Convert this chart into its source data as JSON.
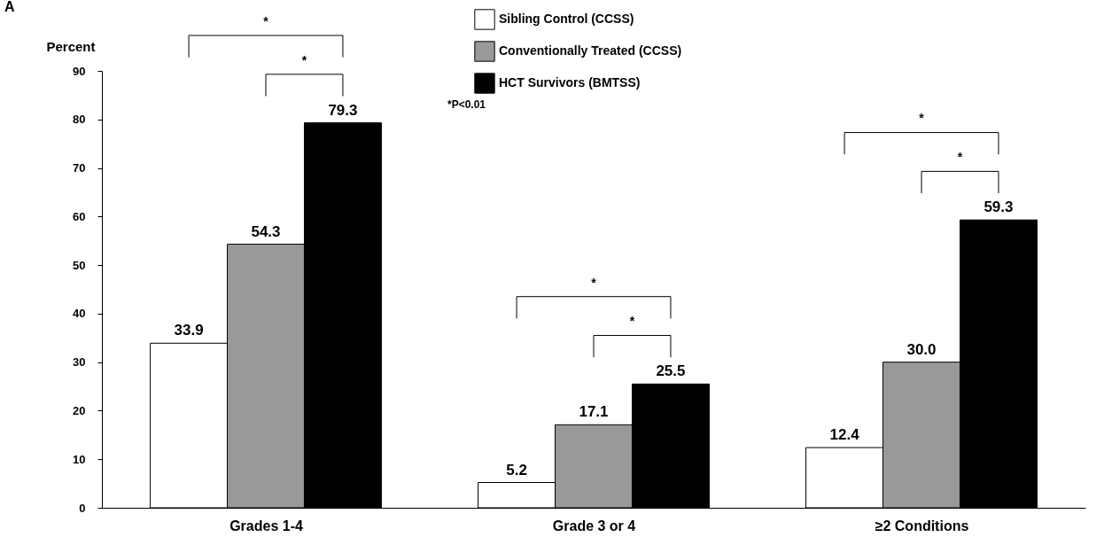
{
  "chart_data": {
    "type": "bar",
    "ylabel": "Percent",
    "categories": [
      "Grades 1-4",
      "Grade 3 or 4",
      "≥2 Conditions"
    ],
    "series": [
      {
        "name": "Sibling Control (CCSS)",
        "color": "#ffffff",
        "values": [
          33.9,
          5.2,
          12.4
        ],
        "value_labels": [
          "33.9",
          "5.2",
          "12.4"
        ]
      },
      {
        "name": "Conventionally Treated (CCSS)",
        "color": "#999999",
        "values": [
          54.3,
          17.1,
          30.0
        ],
        "value_labels": [
          "54.3",
          "17.1",
          "30.0"
        ]
      },
      {
        "name": "HCT Survivors (BMTSS)",
        "color": "#000000",
        "values": [
          79.3,
          25.5,
          59.3
        ],
        "value_labels": [
          "79.3",
          "25.5",
          "59.3"
        ]
      }
    ],
    "ylim": [
      0,
      90
    ],
    "yticks": [
      0,
      10,
      20,
      30,
      40,
      50,
      60,
      70,
      80,
      90
    ],
    "grid": false,
    "legend": "top",
    "annotations": [
      "A",
      "*",
      "*",
      "*",
      "*",
      "*",
      "*",
      "*P<0.01"
    ]
  }
}
